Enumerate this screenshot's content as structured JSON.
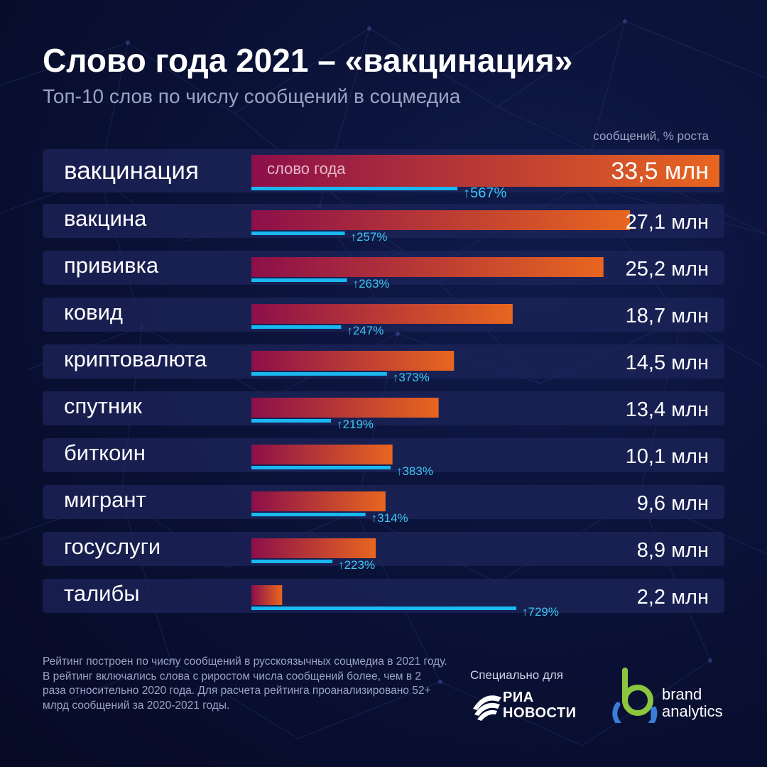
{
  "header": {
    "title": "Слово года 2021 – «вакцинация»",
    "subtitle": "Топ-10 слов по числу сообщений в соцмедиа",
    "units_label": "сообщений, % роста"
  },
  "chart_data": {
    "type": "bar",
    "title": "Слово года 2021 – «вакцинация»",
    "subtitle": "Топ-10 слов по числу сообщений в соцмедиа",
    "units_label": "сообщений, % роста",
    "categories": [
      "вакцинация",
      "вакцина",
      "прививка",
      "ковид",
      "криптовалюта",
      "спутник",
      "биткоин",
      "мигрант",
      "госуслуги",
      "талибы"
    ],
    "series": [
      {
        "name": "сообщений",
        "unit": "млн",
        "values": [
          33.5,
          27.1,
          25.2,
          18.7,
          14.5,
          13.4,
          10.1,
          9.6,
          8.9,
          2.2
        ],
        "labels": [
          "33,5 млн",
          "27,1 млн",
          "25,2 млн",
          "18,7 млн",
          "14,5 млн",
          "13,4 млн",
          "10,1 млн",
          "9,6 млн",
          "8,9 млн",
          "2,2 млн"
        ]
      },
      {
        "name": "% роста",
        "unit": "%",
        "values": [
          567,
          257,
          263,
          247,
          373,
          219,
          383,
          314,
          223,
          729
        ],
        "labels": [
          "↑567%",
          "↑257%",
          "↑263%",
          "↑247%",
          "↑373%",
          "↑219%",
          "↑383%",
          "↑314%",
          "↑223%",
          "↑729%"
        ]
      }
    ],
    "highlight": {
      "category": "вакцинация",
      "badge": "слово года"
    },
    "colors": {
      "bar_start": "#8c0f4a",
      "bar_end": "#e8661f",
      "growth_line": "#19b8f0",
      "row_background": "#1c2458"
    }
  },
  "footer": {
    "note": "Рейтинг построен по числу сообщений в русскоязычных соцмедиа в 2021 году. В рейтинг включались слова с риростом числа сообщений более, чем в 2 раза относительно 2020 года. Для расчета рейтинга  проанализировано 52+ млрд сообщений за 2020-2021 годы.",
    "special_for": "Специально для",
    "ria_line1": "РИА",
    "ria_line2": "НОВОСТИ",
    "ba_line1": "brand",
    "ba_line2": "analytics"
  }
}
